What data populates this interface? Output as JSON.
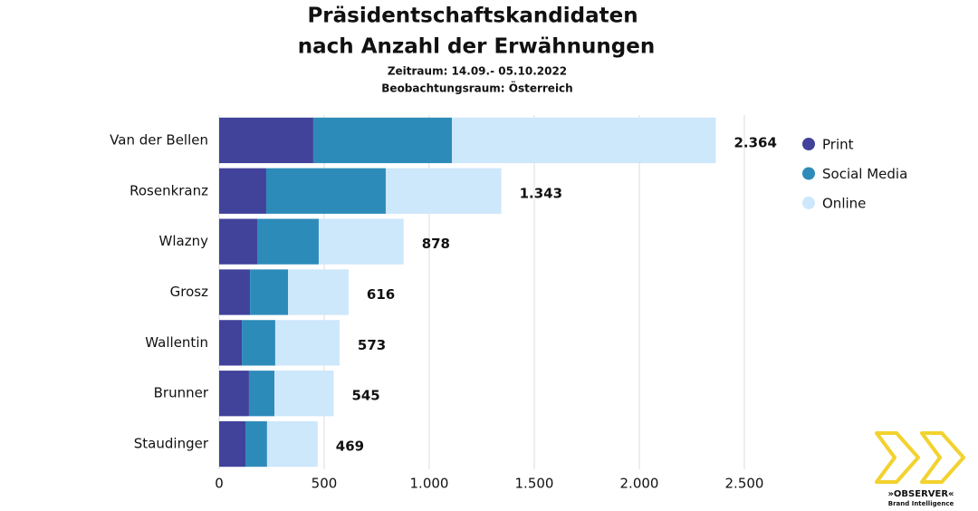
{
  "chart_data": {
    "type": "stacked-barh",
    "title": [
      "Präsidentschaftskandidaten",
      "nach Anzahl der Erwähnungen"
    ],
    "subtitle": [
      "Zeitraum: 14.09.- 05.10.2022",
      "Beobachtungsraum: Österreich"
    ],
    "categories": [
      "Van der Bellen",
      "Rosenkranz",
      "Wlazny",
      "Grosz",
      "Wallentin",
      "Brunner",
      "Staudinger"
    ],
    "series": [
      {
        "name": "Print",
        "color": "#41429a",
        "values": [
          448,
          224,
          181,
          147,
          108,
          142,
          125
        ]
      },
      {
        "name": "Social Media",
        "color": "#2d8bba",
        "values": [
          660,
          569,
          293,
          181,
          159,
          121,
          103
        ]
      },
      {
        "name": "Online",
        "color": "#cde7fb",
        "values": [
          1256,
          550,
          404,
          288,
          306,
          282,
          241
        ]
      }
    ],
    "totals": {
      "values": [
        2364,
        1343,
        878,
        616,
        573,
        545,
        469
      ],
      "value_labels": [
        "2.364",
        "1.343",
        "878",
        "616",
        "573",
        "545",
        "469"
      ]
    },
    "xlim": [
      0,
      2500
    ],
    "xticks": [
      0,
      500,
      {
        "value": 1000,
        "label": "1.000"
      },
      {
        "value": 1500,
        "label": "1.500"
      },
      {
        "value": 2000,
        "label": "2.000"
      },
      {
        "value": 2500,
        "label": "2.500"
      }
    ],
    "grid": true,
    "legend": "right"
  },
  "logo": {
    "name": "»OBSERVER«",
    "tagline": "Brand Intelligence"
  }
}
